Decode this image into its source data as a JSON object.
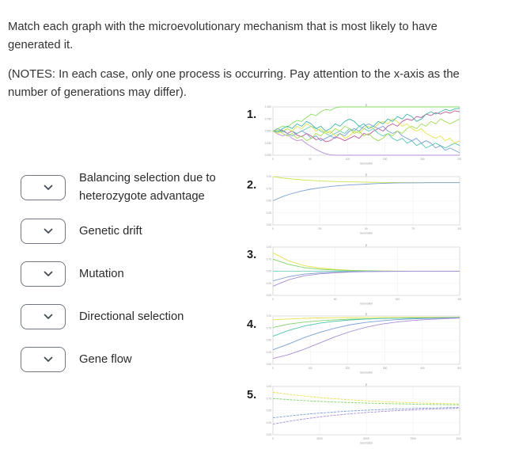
{
  "question": {
    "prompt": "Match each graph with the microevolutionary mechanism that is most likely to have generated it.",
    "notes": "(NOTES: In each case, only one process is occurring. Pay attention to the x-axis as the number of generations may differ)."
  },
  "options": [
    {
      "label": "Balancing selection due to heterozygote advantage",
      "selected_value": ""
    },
    {
      "label": "Genetic drift",
      "selected_value": ""
    },
    {
      "label": "Mutation",
      "selected_value": ""
    },
    {
      "label": "Directional selection",
      "selected_value": ""
    },
    {
      "label": "Gene flow",
      "selected_value": ""
    }
  ],
  "ui_colors": {
    "text": "#333333",
    "dropdown_border": "#6f767d",
    "chevron": "#3f4850",
    "plot_border": "#d5d5d5",
    "grid_line": "#efefef",
    "tick_text": "#999999"
  },
  "chart_data": [
    {
      "number": "1.",
      "type": "line",
      "title": "p",
      "xlabel": "Generation",
      "ylabel": "",
      "ylim": [
        0,
        1
      ],
      "xticks": [
        "0",
        "50",
        "100",
        "150",
        "200",
        "250"
      ],
      "yticks": [
        "0.000",
        "0.250",
        "0.500",
        "0.750",
        "1.000"
      ],
      "grid": true,
      "legend": "none",
      "description": "Many allele-frequency trajectories starting at 0.5 wandering randomly; some fix at 1.0 or are lost at 0 (genetic drift pattern).",
      "series": [
        {
          "name": "run-1",
          "color": "#8ade62",
          "values": [
            0.5,
            0.55,
            0.6,
            0.58,
            0.66,
            0.72,
            0.7,
            0.78,
            0.85,
            0.82,
            0.9,
            0.95,
            0.93,
            0.98,
            1.0,
            1.0,
            1.0,
            1.0,
            1.0,
            1.0,
            1.0,
            1.0,
            1.0,
            1.0,
            1.0,
            1.0,
            1.0,
            1.0,
            1.0,
            1.0,
            1.0,
            1.0,
            1.0,
            1.0,
            1.0,
            1.0,
            1.0,
            1.0,
            1.0,
            1.0
          ]
        },
        {
          "name": "run-2",
          "color": "#b78fd6",
          "values": [
            0.5,
            0.44,
            0.4,
            0.43,
            0.35,
            0.3,
            0.32,
            0.24,
            0.18,
            0.12,
            0.07,
            0.03,
            0.01,
            0.0,
            0.0,
            0.0,
            0.0,
            0.0,
            0.0,
            0.0,
            0.0,
            0.0,
            0.0,
            0.0,
            0.0,
            0.0,
            0.0,
            0.0,
            0.0,
            0.0,
            0.0,
            0.0,
            0.0,
            0.0,
            0.0,
            0.0,
            0.0,
            0.0,
            0.0,
            0.0
          ]
        },
        {
          "name": "run-3",
          "color": "#c0579f",
          "values": [
            0.5,
            0.48,
            0.52,
            0.45,
            0.5,
            0.42,
            0.38,
            0.45,
            0.4,
            0.32,
            0.35,
            0.28,
            0.3,
            0.38,
            0.35,
            0.3,
            0.35,
            0.4,
            0.35,
            0.45,
            0.42,
            0.5,
            0.55,
            0.5,
            0.6,
            0.65,
            0.6,
            0.7,
            0.75,
            0.72,
            0.8,
            0.78,
            0.85,
            0.82,
            0.88,
            0.85,
            0.9,
            0.87,
            0.92,
            0.9
          ]
        },
        {
          "name": "run-4",
          "color": "#5bc8b8",
          "values": [
            0.5,
            0.52,
            0.48,
            0.55,
            0.5,
            0.45,
            0.5,
            0.55,
            0.6,
            0.55,
            0.5,
            0.45,
            0.4,
            0.45,
            0.5,
            0.45,
            0.55,
            0.5,
            0.6,
            0.55,
            0.5,
            0.55,
            0.45,
            0.4,
            0.45,
            0.35,
            0.3,
            0.35,
            0.25,
            0.3,
            0.2,
            0.25,
            0.15,
            0.2,
            0.25,
            0.2,
            0.15,
            0.2,
            0.25,
            0.2
          ]
        },
        {
          "name": "run-5",
          "color": "#e4e44c",
          "values": [
            0.5,
            0.45,
            0.5,
            0.55,
            0.5,
            0.6,
            0.55,
            0.65,
            0.6,
            0.5,
            0.55,
            0.45,
            0.5,
            0.4,
            0.45,
            0.35,
            0.4,
            0.5,
            0.45,
            0.55,
            0.6,
            0.55,
            0.65,
            0.7,
            0.65,
            0.75,
            0.7,
            0.6,
            0.65,
            0.55,
            0.5,
            0.55,
            0.45,
            0.4,
            0.35,
            0.4,
            0.3,
            0.35,
            0.25,
            0.3
          ]
        },
        {
          "name": "run-6",
          "color": "#7b9fd4",
          "values": [
            0.5,
            0.55,
            0.5,
            0.45,
            0.4,
            0.45,
            0.5,
            0.45,
            0.35,
            0.4,
            0.3,
            0.35,
            0.4,
            0.35,
            0.45,
            0.4,
            0.5,
            0.55,
            0.5,
            0.6,
            0.65,
            0.6,
            0.55,
            0.6,
            0.5,
            0.45,
            0.5,
            0.4,
            0.35,
            0.3,
            0.35,
            0.25,
            0.3,
            0.25,
            0.15,
            0.2,
            0.1,
            0.15,
            0.1,
            0.05
          ]
        },
        {
          "name": "run-7",
          "color": "#3fb5a8",
          "values": [
            0.5,
            0.48,
            0.55,
            0.6,
            0.55,
            0.65,
            0.6,
            0.7,
            0.65,
            0.55,
            0.6,
            0.5,
            0.55,
            0.65,
            0.6,
            0.7,
            0.75,
            0.7,
            0.6,
            0.65,
            0.55,
            0.6,
            0.7,
            0.65,
            0.75,
            0.7,
            0.8,
            0.75,
            0.85,
            0.8,
            0.7,
            0.75,
            0.85,
            0.9,
            0.85,
            0.9,
            0.95,
            0.92,
            0.96,
            0.97
          ]
        },
        {
          "name": "run-8",
          "color": "#a5dc57",
          "values": [
            0.5,
            0.52,
            0.45,
            0.4,
            0.45,
            0.35,
            0.4,
            0.3,
            0.35,
            0.45,
            0.4,
            0.5,
            0.45,
            0.55,
            0.5,
            0.6,
            0.55,
            0.45,
            0.5,
            0.4,
            0.45,
            0.35,
            0.3,
            0.35,
            0.45,
            0.4,
            0.5,
            0.45,
            0.55,
            0.6,
            0.55,
            0.65,
            0.6,
            0.7,
            0.65,
            0.75,
            0.7,
            0.65,
            0.7,
            0.75
          ]
        }
      ]
    },
    {
      "number": "2.",
      "type": "line",
      "title": "p",
      "xlabel": "Generation",
      "ylabel": "",
      "ylim": [
        0,
        1
      ],
      "xticks": [
        "0",
        "25",
        "50",
        "75",
        "100"
      ],
      "yticks": [
        "0.00",
        "0.25",
        "0.50",
        "0.75",
        "1.00"
      ],
      "grid": true,
      "legend": "none",
      "description": "Two allele-frequency curves (1.0 falling, 0.5 rising) converging smoothly to ~0.87 (gene flow pattern).",
      "series": [
        {
          "name": "upper",
          "color": "#cfe24e",
          "values": [
            1.0,
            0.972,
            0.951,
            0.934,
            0.921,
            0.911,
            0.903,
            0.897,
            0.892,
            0.888,
            0.885,
            0.881,
            0.879,
            0.877,
            0.876,
            0.876,
            0.875,
            0.875,
            0.875,
            0.875,
            0.875
          ]
        },
        {
          "name": "lower",
          "color": "#7b9fd4",
          "values": [
            0.5,
            0.583,
            0.648,
            0.698,
            0.737,
            0.768,
            0.791,
            0.81,
            0.824,
            0.835,
            0.844,
            0.856,
            0.863,
            0.867,
            0.87,
            0.871,
            0.872,
            0.873,
            0.873,
            0.874,
            0.874
          ]
        }
      ]
    },
    {
      "number": "3.",
      "type": "line",
      "title": "p",
      "xlabel": "Generation",
      "ylabel": "",
      "ylim": [
        0,
        1
      ],
      "xticks": [
        "0",
        "50",
        "100",
        "150"
      ],
      "yticks": [
        "0.00",
        "0.25",
        "0.50",
        "0.75",
        "1.00"
      ],
      "grid": true,
      "legend": "none",
      "description": "Five curves starting at different frequencies all converging quickly to an intermediate equilibrium of 0.5 (balancing selection / heterozygote advantage pattern).",
      "series": [
        {
          "name": "p0-0.88",
          "color": "#e4e44c",
          "values": [
            0.88,
            0.717,
            0.616,
            0.566,
            0.538,
            0.52,
            0.511,
            0.507,
            0.503,
            0.502,
            0.501,
            0.5,
            0.5
          ]
        },
        {
          "name": "p0-0.75",
          "color": "#7fd46c",
          "values": [
            0.75,
            0.643,
            0.576,
            0.543,
            0.525,
            0.513,
            0.508,
            0.504,
            0.502,
            0.501,
            0.501,
            0.5,
            0.5
          ]
        },
        {
          "name": "p0-0.50",
          "color": "#86d5c5",
          "values": [
            0.5,
            0.5,
            0.5,
            0.5,
            0.5,
            0.5,
            0.5,
            0.5,
            0.5,
            0.5,
            0.5,
            0.5,
            0.5
          ]
        },
        {
          "name": "p0-0.30",
          "color": "#7b9fd4",
          "values": [
            0.3,
            0.386,
            0.439,
            0.465,
            0.48,
            0.49,
            0.494,
            0.497,
            0.498,
            0.499,
            0.499,
            0.5,
            0.5
          ]
        },
        {
          "name": "p0-0.19",
          "color": "#a88fd2",
          "values": [
            0.19,
            0.323,
            0.405,
            0.446,
            0.469,
            0.484,
            0.491,
            0.495,
            0.497,
            0.498,
            0.499,
            0.5,
            0.5
          ]
        }
      ]
    },
    {
      "number": "4.",
      "type": "line",
      "title": "p",
      "xlabel": "Generation",
      "ylabel": "",
      "ylim": [
        0,
        1
      ],
      "xticks": [
        "0",
        "100",
        "200",
        "300",
        "400",
        "500"
      ],
      "yticks": [
        "0.00",
        "0.25",
        "0.50",
        "0.75",
        "1.00"
      ],
      "grid": true,
      "legend": "none",
      "description": "Five curves starting at different frequencies all rising toward fixation near 1.0 (directional selection pattern).",
      "series": [
        {
          "name": "p0-0.92",
          "color": "#e4e44c",
          "values": [
            0.92,
            0.938,
            0.951,
            0.959,
            0.964,
            0.967,
            0.969,
            0.971,
            0.972,
            0.973,
            0.973,
            0.974,
            0.974
          ]
        },
        {
          "name": "p0-0.76",
          "color": "#7fd46c",
          "values": [
            0.76,
            0.831,
            0.872,
            0.9,
            0.919,
            0.932,
            0.941,
            0.947,
            0.951,
            0.954,
            0.958,
            0.962,
            0.966
          ]
        },
        {
          "name": "p0-0.58",
          "color": "#4fc2ae",
          "values": [
            0.58,
            0.7,
            0.79,
            0.85,
            0.89,
            0.918,
            0.936,
            0.947,
            0.953,
            0.957,
            0.96,
            0.964,
            0.967
          ]
        },
        {
          "name": "p0-0.30",
          "color": "#7b9fd4",
          "values": [
            0.3,
            0.42,
            0.55,
            0.66,
            0.75,
            0.82,
            0.868,
            0.9,
            0.924,
            0.94,
            0.95,
            0.958,
            0.964
          ]
        },
        {
          "name": "p0-0.12",
          "color": "#a88fd2",
          "values": [
            0.12,
            0.2,
            0.31,
            0.44,
            0.57,
            0.68,
            0.768,
            0.832,
            0.876,
            0.906,
            0.928,
            0.944,
            0.956
          ]
        }
      ]
    },
    {
      "number": "5.",
      "type": "line",
      "title": "p",
      "xlabel": "Generation",
      "ylabel": "",
      "ylim": [
        0,
        1
      ],
      "xticks": [
        "0",
        "2500",
        "5000",
        "7500",
        "10000"
      ],
      "yticks": [
        "0.00",
        "0.25",
        "0.50",
        "0.75",
        "1.00"
      ],
      "grid": true,
      "legend": "none",
      "dashed": true,
      "description": "Four curves converging very slowly toward ~0.6 over many thousands of generations (mutation pattern).",
      "series": [
        {
          "name": "p0-0.88",
          "color": "#e4e44c",
          "values": [
            0.88,
            0.829,
            0.788,
            0.754,
            0.726,
            0.703,
            0.684,
            0.669,
            0.657,
            0.646,
            0.638
          ]
        },
        {
          "name": "p0-0.75",
          "color": "#7fd46c",
          "values": [
            0.75,
            0.723,
            0.7,
            0.682,
            0.667,
            0.655,
            0.645,
            0.637,
            0.63,
            0.625,
            0.62
          ]
        },
        {
          "name": "p0-0.35",
          "color": "#7b9fd4",
          "values": [
            0.35,
            0.395,
            0.432,
            0.463,
            0.488,
            0.508,
            0.525,
            0.538,
            0.549,
            0.558,
            0.566
          ]
        },
        {
          "name": "p0-0.22",
          "color": "#a88fd2",
          "values": [
            0.22,
            0.289,
            0.345,
            0.391,
            0.429,
            0.46,
            0.486,
            0.507,
            0.524,
            0.537,
            0.548
          ]
        }
      ]
    }
  ]
}
